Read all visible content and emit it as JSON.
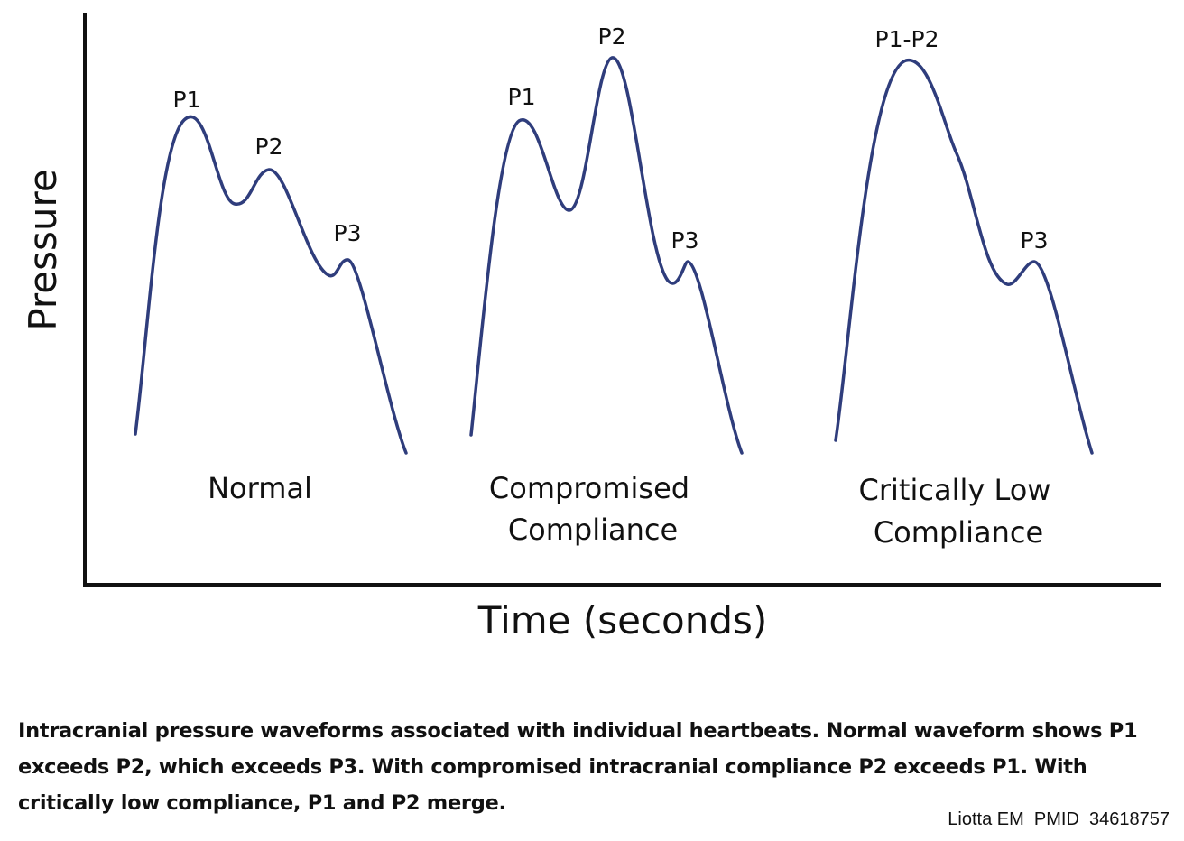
{
  "axes": {
    "y_label": "Pressure",
    "x_label": "Time (seconds)"
  },
  "panels": [
    {
      "condition_lines": [
        "Normal"
      ],
      "peaks": [
        "P1",
        "P2",
        "P3"
      ]
    },
    {
      "condition_lines": [
        "Compromised",
        "Compliance"
      ],
      "peaks": [
        "P1",
        "P2",
        "P3"
      ]
    },
    {
      "condition_lines": [
        "Critically Low",
        "Compliance"
      ],
      "peaks": [
        "P1-P2",
        "P3"
      ]
    }
  ],
  "colors": {
    "waveform": "#2f3d7c",
    "axis": "#111111"
  },
  "caption": "Intracranial pressure waveforms associated with individual heartbeats. Normal waveform shows P1 exceeds P2, which exceeds P3. With compromised intracranial compliance P2 exceeds P1. With critically low compliance, P1 and P2 merge.",
  "citation": "Liotta EM  PMID  34618757"
}
